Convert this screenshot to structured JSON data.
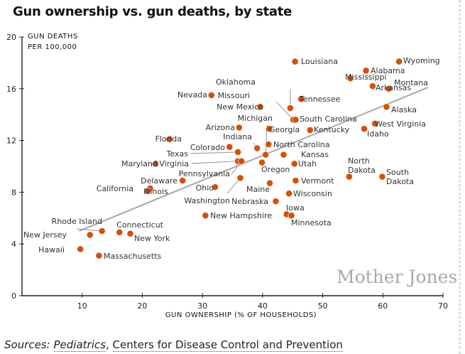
{
  "page": {
    "title": "Gun ownership vs. gun deaths, by state",
    "watermark": "Mother Jones",
    "sources_prefix": "Sources:",
    "sources_link1": "Pediatrics",
    "sources_sep": ",",
    "sources_link2": "Centers for Disease Control and Prevention"
  },
  "colors": {
    "point": "#d4500f",
    "trendline": "#a8a8a8",
    "axis": "#222222"
  },
  "chart_data": {
    "type": "scatter",
    "title": "Gun ownership vs. gun deaths, by state",
    "xlabel": "GUN OWNERSHIP (% OF HOUSEHOLDS)",
    "ylabel_line1": "GUN DEATHS",
    "ylabel_line2": "PER 100,000",
    "xlim": [
      0,
      70
    ],
    "ylim": [
      0,
      20
    ],
    "xticks": [
      10,
      20,
      30,
      40,
      50,
      60,
      70
    ],
    "yticks": [
      0,
      4,
      8,
      12,
      16,
      20
    ],
    "grid": false,
    "trendline": {
      "x": [
        9.5,
        67.5
      ],
      "y": [
        5.0,
        16.1
      ]
    },
    "points": [
      {
        "state": "Louisiana",
        "x": 45.4,
        "y": 18.1
      },
      {
        "state": "Wyoming",
        "x": 62.7,
        "y": 18.1
      },
      {
        "state": "Alabama",
        "x": 57.2,
        "y": 17.4
      },
      {
        "state": "Mississippi",
        "x": 54.6,
        "y": 16.8
      },
      {
        "state": "Arkansas",
        "x": 58.3,
        "y": 16.2
      },
      {
        "state": "Montana",
        "x": 61.0,
        "y": 16.0
      },
      {
        "state": "Nevada",
        "x": 31.5,
        "y": 15.5
      },
      {
        "state": "Oklahoma",
        "x": 44.6,
        "y": 14.5
      },
      {
        "state": "Tennessee",
        "x": 46.4,
        "y": 15.2
      },
      {
        "state": "New Mexico",
        "x": 39.6,
        "y": 14.6
      },
      {
        "state": "Alaska",
        "x": 60.6,
        "y": 14.6
      },
      {
        "state": "Missouri",
        "x": 45.1,
        "y": 13.6
      },
      {
        "state": "South Carolina",
        "x": 45.5,
        "y": 13.6
      },
      {
        "state": "Arizona",
        "x": 36.1,
        "y": 13.0
      },
      {
        "state": "Georgia",
        "x": 41.1,
        "y": 12.9
      },
      {
        "state": "Kentucky",
        "x": 47.9,
        "y": 12.8
      },
      {
        "state": "West Virginia",
        "x": 58.7,
        "y": 13.3
      },
      {
        "state": "Idaho",
        "x": 56.9,
        "y": 12.9
      },
      {
        "state": "Florida",
        "x": 24.5,
        "y": 12.1
      },
      {
        "state": "Indiana",
        "x": 39.1,
        "y": 11.4
      },
      {
        "state": "North Carolina",
        "x": 41.0,
        "y": 11.7
      },
      {
        "state": "Colorado",
        "x": 34.5,
        "y": 11.5
      },
      {
        "state": "Texas",
        "x": 35.9,
        "y": 11.1
      },
      {
        "state": "Michigan",
        "x": 40.5,
        "y": 10.9
      },
      {
        "state": "Kansas",
        "x": 43.5,
        "y": 10.9
      },
      {
        "state": "Virginia",
        "x": 35.9,
        "y": 10.4
      },
      {
        "state": "Pennsylvania",
        "x": 36.5,
        "y": 10.4
      },
      {
        "state": "Oregon",
        "x": 39.9,
        "y": 10.3
      },
      {
        "state": "Utah",
        "x": 45.3,
        "y": 10.2
      },
      {
        "state": "Maryland",
        "x": 22.2,
        "y": 10.2
      },
      {
        "state": "North Dakota",
        "x": 54.4,
        "y": 9.2
      },
      {
        "state": "South Dakota",
        "x": 59.9,
        "y": 9.2
      },
      {
        "state": "Delaware",
        "x": 26.7,
        "y": 8.9
      },
      {
        "state": "Washington",
        "x": 36.3,
        "y": 9.1
      },
      {
        "state": "Vermont",
        "x": 45.5,
        "y": 8.9
      },
      {
        "state": "Ohio",
        "x": 32.1,
        "y": 8.4
      },
      {
        "state": "Maine",
        "x": 41.2,
        "y": 8.7
      },
      {
        "state": "California",
        "x": 21.3,
        "y": 8.3
      },
      {
        "state": "Illinois",
        "x": 20.9,
        "y": 8.1
      },
      {
        "state": "Wisconsin",
        "x": 44.4,
        "y": 7.9
      },
      {
        "state": "Nebraska",
        "x": 42.2,
        "y": 7.3
      },
      {
        "state": "New Hampshire",
        "x": 30.5,
        "y": 6.2
      },
      {
        "state": "Iowa",
        "x": 44.0,
        "y": 6.3
      },
      {
        "state": "Minnesota",
        "x": 44.8,
        "y": 6.2
      },
      {
        "state": "Rhode Island",
        "x": 13.3,
        "y": 5.0
      },
      {
        "state": "Connecticut",
        "x": 16.2,
        "y": 4.9
      },
      {
        "state": "New York",
        "x": 18.0,
        "y": 4.8
      },
      {
        "state": "New Jersey",
        "x": 11.3,
        "y": 4.7
      },
      {
        "state": "Hawaii",
        "x": 9.7,
        "y": 3.6
      },
      {
        "state": "Massachusetts",
        "x": 12.8,
        "y": 3.1
      }
    ],
    "labels": [
      {
        "text": "Louisiana",
        "state": "Louisiana"
      },
      {
        "text": "Wyoming",
        "state": "Wyoming"
      },
      {
        "text": "Alabama",
        "state": "Alabama"
      },
      {
        "text": "Mississippi",
        "state": "Mississippi"
      },
      {
        "text": "Arkansas",
        "state": "Arkansas"
      },
      {
        "text": "Montana",
        "state": "Montana"
      },
      {
        "text": "Nevada",
        "state": "Nevada"
      },
      {
        "text": "Oklahoma",
        "state": "Oklahoma"
      },
      {
        "text": "Tennessee",
        "state": "Tennessee"
      },
      {
        "text": "New Mexico",
        "state": "New Mexico"
      },
      {
        "text": "Alaska",
        "state": "Alaska"
      },
      {
        "text": "Missouri",
        "state": "Missouri"
      },
      {
        "text": "South Carolina",
        "state": "South Carolina"
      },
      {
        "text": "Arizona",
        "state": "Arizona"
      },
      {
        "text": "Georgia",
        "state": "Georgia"
      },
      {
        "text": "Kentucky",
        "state": "Kentucky"
      },
      {
        "text": "West Virginia",
        "state": "West Virginia"
      },
      {
        "text": "Idaho",
        "state": "Idaho"
      },
      {
        "text": "Florida",
        "state": "Florida"
      },
      {
        "text": "Michigan",
        "state": "Michigan"
      },
      {
        "text": "Indiana",
        "state": "Indiana"
      },
      {
        "text": "North Carolina",
        "state": "North Carolina"
      },
      {
        "text": "Colorado",
        "state": "Colorado"
      },
      {
        "text": "Texas",
        "state": "Texas"
      },
      {
        "text": "Kansas",
        "state": "Kansas"
      },
      {
        "text": "Virginia",
        "state": "Virginia"
      },
      {
        "text": "Pennsylvania",
        "state": "Pennsylvania"
      },
      {
        "text": "Oregon",
        "state": "Oregon"
      },
      {
        "text": "Utah",
        "state": "Utah"
      },
      {
        "text": "Maryland",
        "state": "Maryland"
      },
      {
        "text": "North",
        "state": "North Dakota"
      },
      {
        "text": "Dakota",
        "state": "North Dakota"
      },
      {
        "text": "South",
        "state": "South Dakota"
      },
      {
        "text": "Dakota",
        "state": "South Dakota"
      },
      {
        "text": "Delaware",
        "state": "Delaware"
      },
      {
        "text": "Vermont",
        "state": "Vermont"
      },
      {
        "text": "California",
        "state": "California"
      },
      {
        "text": "Illinois",
        "state": "Illinois"
      },
      {
        "text": "Ohio",
        "state": "Ohio"
      },
      {
        "text": "Maine",
        "state": "Maine"
      },
      {
        "text": "Washington",
        "state": "Washington"
      },
      {
        "text": "Wisconsin",
        "state": "Wisconsin"
      },
      {
        "text": "Nebraska",
        "state": "Nebraska"
      },
      {
        "text": "Iowa",
        "state": "Iowa"
      },
      {
        "text": "New Hampshire",
        "state": "New Hampshire"
      },
      {
        "text": "Minnesota",
        "state": "Minnesota"
      },
      {
        "text": "Rhode Island",
        "state": "Rhode Island"
      },
      {
        "text": "Connecticut",
        "state": "Connecticut"
      },
      {
        "text": "New Jersey",
        "state": "New Jersey"
      },
      {
        "text": "New York",
        "state": "New York"
      },
      {
        "text": "Hawaii",
        "state": "Hawaii"
      },
      {
        "text": "Massachusetts",
        "state": "Massachusetts"
      }
    ]
  }
}
